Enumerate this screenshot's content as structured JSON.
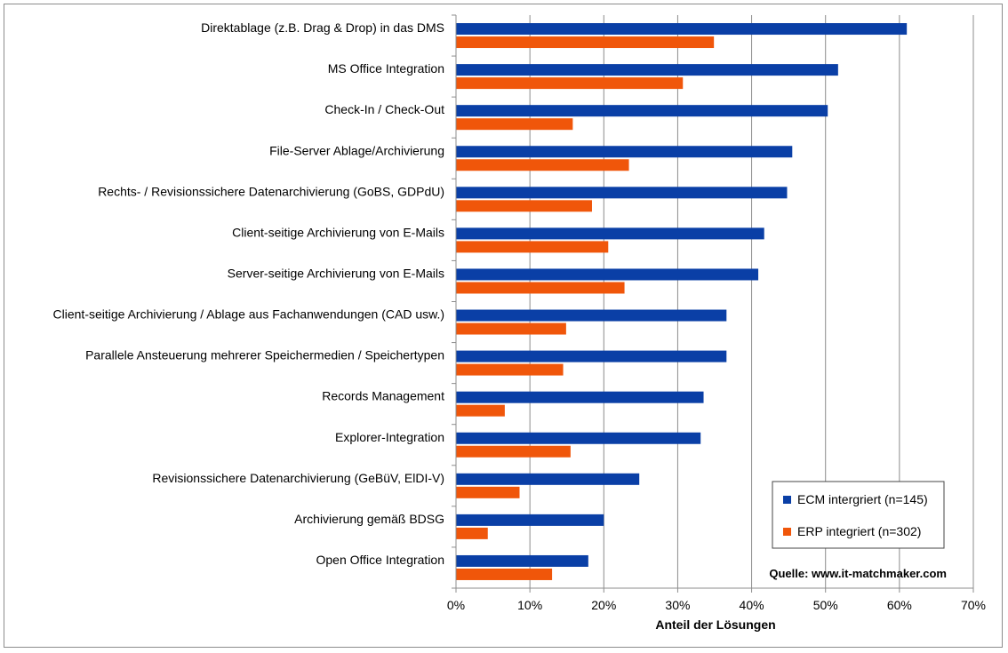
{
  "chart_data": {
    "type": "bar",
    "orientation": "horizontal",
    "title": "",
    "xlabel": "Anteil der Lösungen",
    "ylabel": "",
    "xlim": [
      0,
      70
    ],
    "x_ticks": [
      "0%",
      "10%",
      "20%",
      "30%",
      "40%",
      "50%",
      "60%",
      "70%"
    ],
    "grid": true,
    "legend_position": "bottom-right",
    "categories": [
      "Direktablage (z.B. Drag & Drop) in das DMS",
      "MS Office Integration",
      "Check-In / Check-Out",
      "File-Server Ablage/Archivierung",
      "Rechts- / Revisionssichere Datenarchivierung (GoBS, GDPdU)",
      "Client-seitige Archivierung von E-Mails",
      "Server-seitige Archivierung von E-Mails",
      "Client-seitige Archivierung / Ablage aus Fachanwendungen (CAD usw.)",
      "Parallele Ansteuerung mehrerer Speichermedien / Speichertypen",
      "Records Management",
      "Explorer-Integration",
      "Revisionssichere Datenarchivierung (GeBüV, ElDI-V)",
      "Archivierung gemäß BDSG",
      "Open Office Integration"
    ],
    "series": [
      {
        "name": "ECM intergriert (n=145)",
        "color": "#0a3fa6",
        "values": [
          61.0,
          51.7,
          50.3,
          45.5,
          44.8,
          41.7,
          40.9,
          36.6,
          36.6,
          33.5,
          33.1,
          24.8,
          20.0,
          17.9
        ]
      },
      {
        "name": "ERP integriert (n=302)",
        "color": "#f0560a",
        "values": [
          34.9,
          30.7,
          15.8,
          23.4,
          18.4,
          20.6,
          22.8,
          14.9,
          14.5,
          6.6,
          15.5,
          8.6,
          4.3,
          13.0
        ]
      }
    ],
    "annotation": "Quelle: www.it-matchmaker.com"
  }
}
